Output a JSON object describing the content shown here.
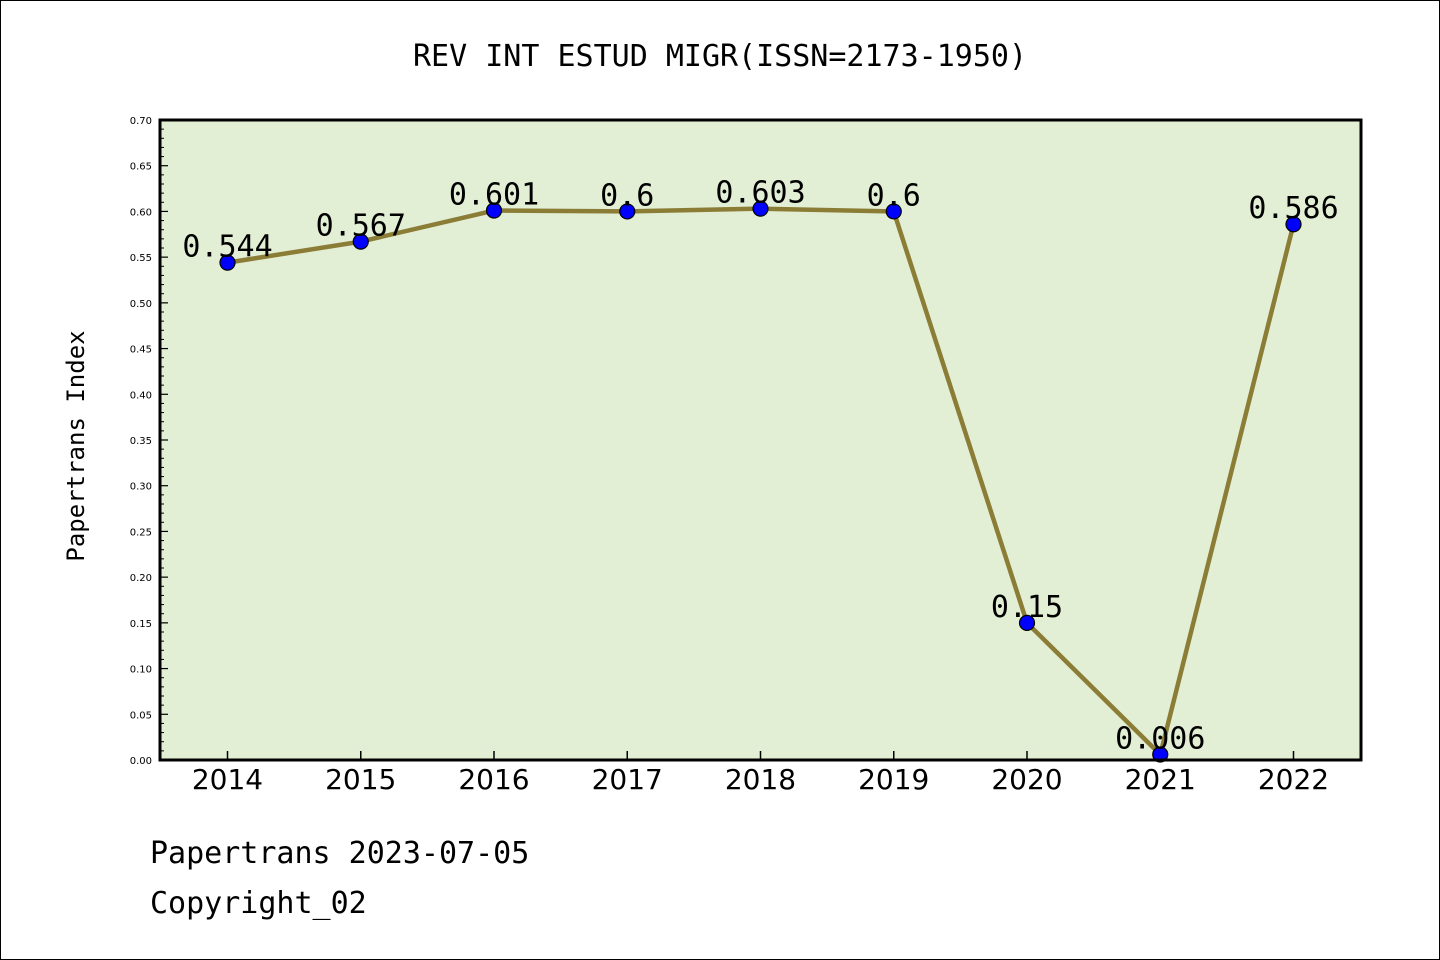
{
  "chart_data": {
    "type": "line",
    "title": "REV INT ESTUD MIGR(ISSN=2173-1950)",
    "xlabel": "",
    "ylabel": "Papertrans Index",
    "categories": [
      "2014",
      "2015",
      "2016",
      "2017",
      "2018",
      "2019",
      "2020",
      "2021",
      "2022"
    ],
    "series": [
      {
        "values": [
          0.544,
          0.567,
          0.601,
          0.6,
          0.603,
          0.6,
          0.15,
          0.006,
          0.586
        ],
        "labels": [
          "0.544",
          "0.567",
          "0.601",
          "0.6",
          "0.603",
          "0.6",
          "0.15",
          "0.006",
          "0.586"
        ]
      }
    ],
    "ylim": [
      0,
      0.7
    ],
    "yticks": [
      "0.00",
      "0.05",
      "0.10",
      "0.15",
      "0.20",
      "0.25",
      "0.30",
      "0.35",
      "0.40",
      "0.45",
      "0.50",
      "0.55",
      "0.60",
      "0.65",
      "0.70"
    ],
    "grid": false,
    "legend": "none",
    "colors": {
      "plot_background": "#e2efd5",
      "line": "#8b7d35",
      "marker": "#0000ff"
    }
  },
  "footer": {
    "line1": "Papertrans 2023-07-05",
    "line2": "Copyright_02"
  }
}
